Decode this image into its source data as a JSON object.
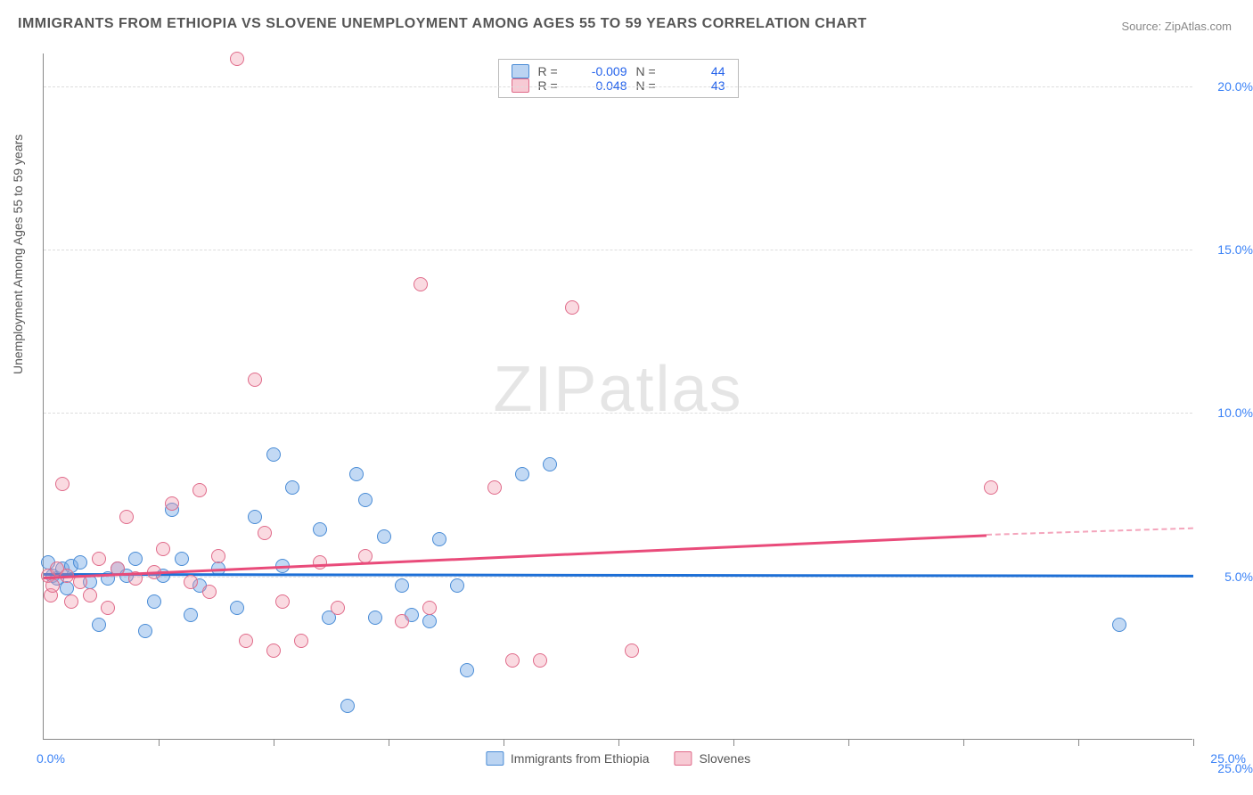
{
  "title": "IMMIGRANTS FROM ETHIOPIA VS SLOVENE UNEMPLOYMENT AMONG AGES 55 TO 59 YEARS CORRELATION CHART",
  "source": "Source: ZipAtlas.com",
  "ylabel": "Unemployment Among Ages 55 to 59 years",
  "watermark_bold": "ZIP",
  "watermark_thin": "atlas",
  "chart": {
    "type": "scatter",
    "xlim": [
      0,
      25
    ],
    "ylim": [
      0,
      21
    ],
    "x_tick_step": 2.5,
    "y_ticks": [
      5,
      10,
      15,
      20,
      25
    ],
    "y_tick_labels": [
      "5.0%",
      "10.0%",
      "15.0%",
      "20.0%",
      "25.0%"
    ],
    "x_label_zero": "0.0%",
    "x_label_max": "25.0%",
    "background_color": "#ffffff",
    "grid_color": "#dddddd",
    "series": [
      {
        "name": "Immigrants from Ethiopia",
        "color_fill": "rgba(120,170,230,0.45)",
        "color_stroke": "#4a8cd6",
        "trend_color": "#1d6fd6",
        "R": "-0.009",
        "N": "44",
        "trend": {
          "x1": 0,
          "y1": 5.1,
          "x2": 25,
          "y2": 5.05
        },
        "points": [
          [
            0.1,
            5.4
          ],
          [
            0.2,
            5.0
          ],
          [
            0.3,
            4.9
          ],
          [
            0.4,
            5.2
          ],
          [
            0.5,
            4.6
          ],
          [
            0.6,
            5.3
          ],
          [
            0.8,
            5.4
          ],
          [
            1.0,
            4.8
          ],
          [
            1.2,
            3.5
          ],
          [
            1.4,
            4.9
          ],
          [
            1.6,
            5.2
          ],
          [
            1.8,
            5.0
          ],
          [
            2.0,
            5.5
          ],
          [
            2.2,
            3.3
          ],
          [
            2.4,
            4.2
          ],
          [
            2.6,
            5.0
          ],
          [
            2.8,
            7.0
          ],
          [
            3.0,
            5.5
          ],
          [
            3.2,
            3.8
          ],
          [
            3.4,
            4.7
          ],
          [
            3.8,
            5.2
          ],
          [
            4.2,
            4.0
          ],
          [
            4.6,
            6.8
          ],
          [
            5.0,
            8.7
          ],
          [
            5.2,
            5.3
          ],
          [
            5.4,
            7.7
          ],
          [
            6.0,
            6.4
          ],
          [
            6.2,
            3.7
          ],
          [
            6.6,
            1.0
          ],
          [
            6.8,
            8.1
          ],
          [
            7.0,
            7.3
          ],
          [
            7.2,
            3.7
          ],
          [
            7.4,
            6.2
          ],
          [
            7.8,
            4.7
          ],
          [
            8.0,
            3.8
          ],
          [
            8.4,
            3.6
          ],
          [
            8.6,
            6.1
          ],
          [
            9.0,
            4.7
          ],
          [
            9.2,
            2.1
          ],
          [
            10.4,
            8.1
          ],
          [
            11.0,
            8.4
          ],
          [
            23.4,
            3.5
          ]
        ]
      },
      {
        "name": "Slovenes",
        "color_fill": "rgba(240,150,170,0.35)",
        "color_stroke": "#e06b8a",
        "trend_color": "#e94b7a",
        "R": "0.048",
        "N": "43",
        "trend": {
          "x1": 0,
          "y1": 5.0,
          "x2": 20.5,
          "y2": 6.3
        },
        "trend_dash": {
          "x1": 20.5,
          "y1": 6.3,
          "x2": 25,
          "y2": 6.5
        },
        "points": [
          [
            0.1,
            5.0
          ],
          [
            0.15,
            4.4
          ],
          [
            0.2,
            4.7
          ],
          [
            0.3,
            5.2
          ],
          [
            0.4,
            7.8
          ],
          [
            0.5,
            5.0
          ],
          [
            0.6,
            4.2
          ],
          [
            0.8,
            4.8
          ],
          [
            1.0,
            4.4
          ],
          [
            1.2,
            5.5
          ],
          [
            1.4,
            4.0
          ],
          [
            1.6,
            5.2
          ],
          [
            1.8,
            6.8
          ],
          [
            2.0,
            4.9
          ],
          [
            2.4,
            5.1
          ],
          [
            2.6,
            5.8
          ],
          [
            2.8,
            7.2
          ],
          [
            3.2,
            4.8
          ],
          [
            3.4,
            7.6
          ],
          [
            3.6,
            4.5
          ],
          [
            3.8,
            5.6
          ],
          [
            4.2,
            20.8
          ],
          [
            4.4,
            3.0
          ],
          [
            4.6,
            11.0
          ],
          [
            4.8,
            6.3
          ],
          [
            5.0,
            2.7
          ],
          [
            5.2,
            4.2
          ],
          [
            5.6,
            3.0
          ],
          [
            6.0,
            5.4
          ],
          [
            6.4,
            4.0
          ],
          [
            7.0,
            5.6
          ],
          [
            7.8,
            3.6
          ],
          [
            8.2,
            13.9
          ],
          [
            8.4,
            4.0
          ],
          [
            9.8,
            7.7
          ],
          [
            10.2,
            2.4
          ],
          [
            10.8,
            2.4
          ],
          [
            11.5,
            13.2
          ],
          [
            12.8,
            2.7
          ],
          [
            20.6,
            7.7
          ]
        ]
      }
    ]
  },
  "legend_top": {
    "r_label": "R =",
    "n_label": "N ="
  },
  "legend_bottom": {
    "series1": "Immigrants from Ethiopia",
    "series2": "Slovenes"
  }
}
